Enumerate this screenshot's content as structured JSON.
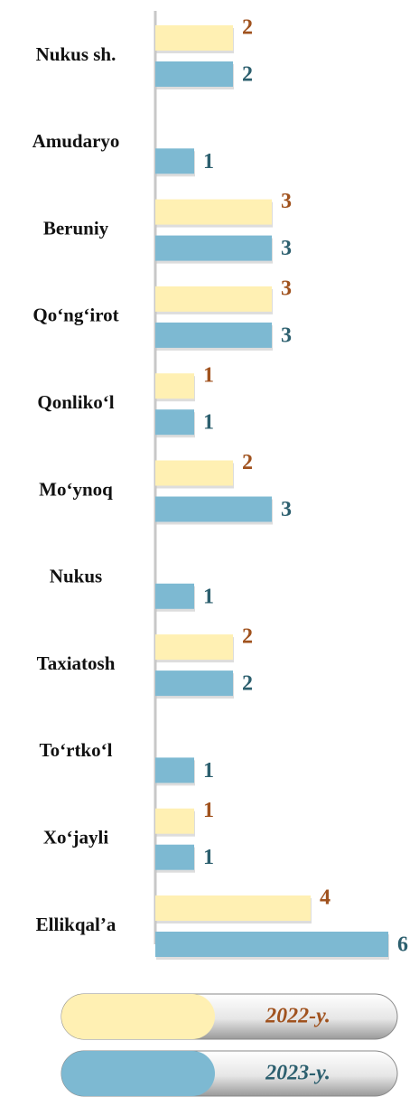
{
  "chart_data": {
    "type": "bar",
    "orientation": "horizontal",
    "categories": [
      "Nukus sh.",
      "Amudaryo",
      "Beruniy",
      "Qo‘ng‘irot",
      "Qonliko‘l",
      "Mo‘ynoq",
      "Nukus",
      "Taxiatosh",
      "To‘rtko‘l",
      "Xo‘jayli",
      "Ellikqal’a"
    ],
    "series": [
      {
        "name": "2022-y.",
        "color": "#fff0b3",
        "label_color": "#a0521e",
        "values": [
          2,
          null,
          3,
          3,
          1,
          2,
          null,
          2,
          null,
          1,
          4
        ]
      },
      {
        "name": "2023-y.",
        "color": "#7db9d2",
        "label_color": "#2c5f6e",
        "values": [
          2,
          1,
          3,
          3,
          1,
          3,
          1,
          2,
          1,
          1,
          6
        ]
      }
    ]
  }
}
